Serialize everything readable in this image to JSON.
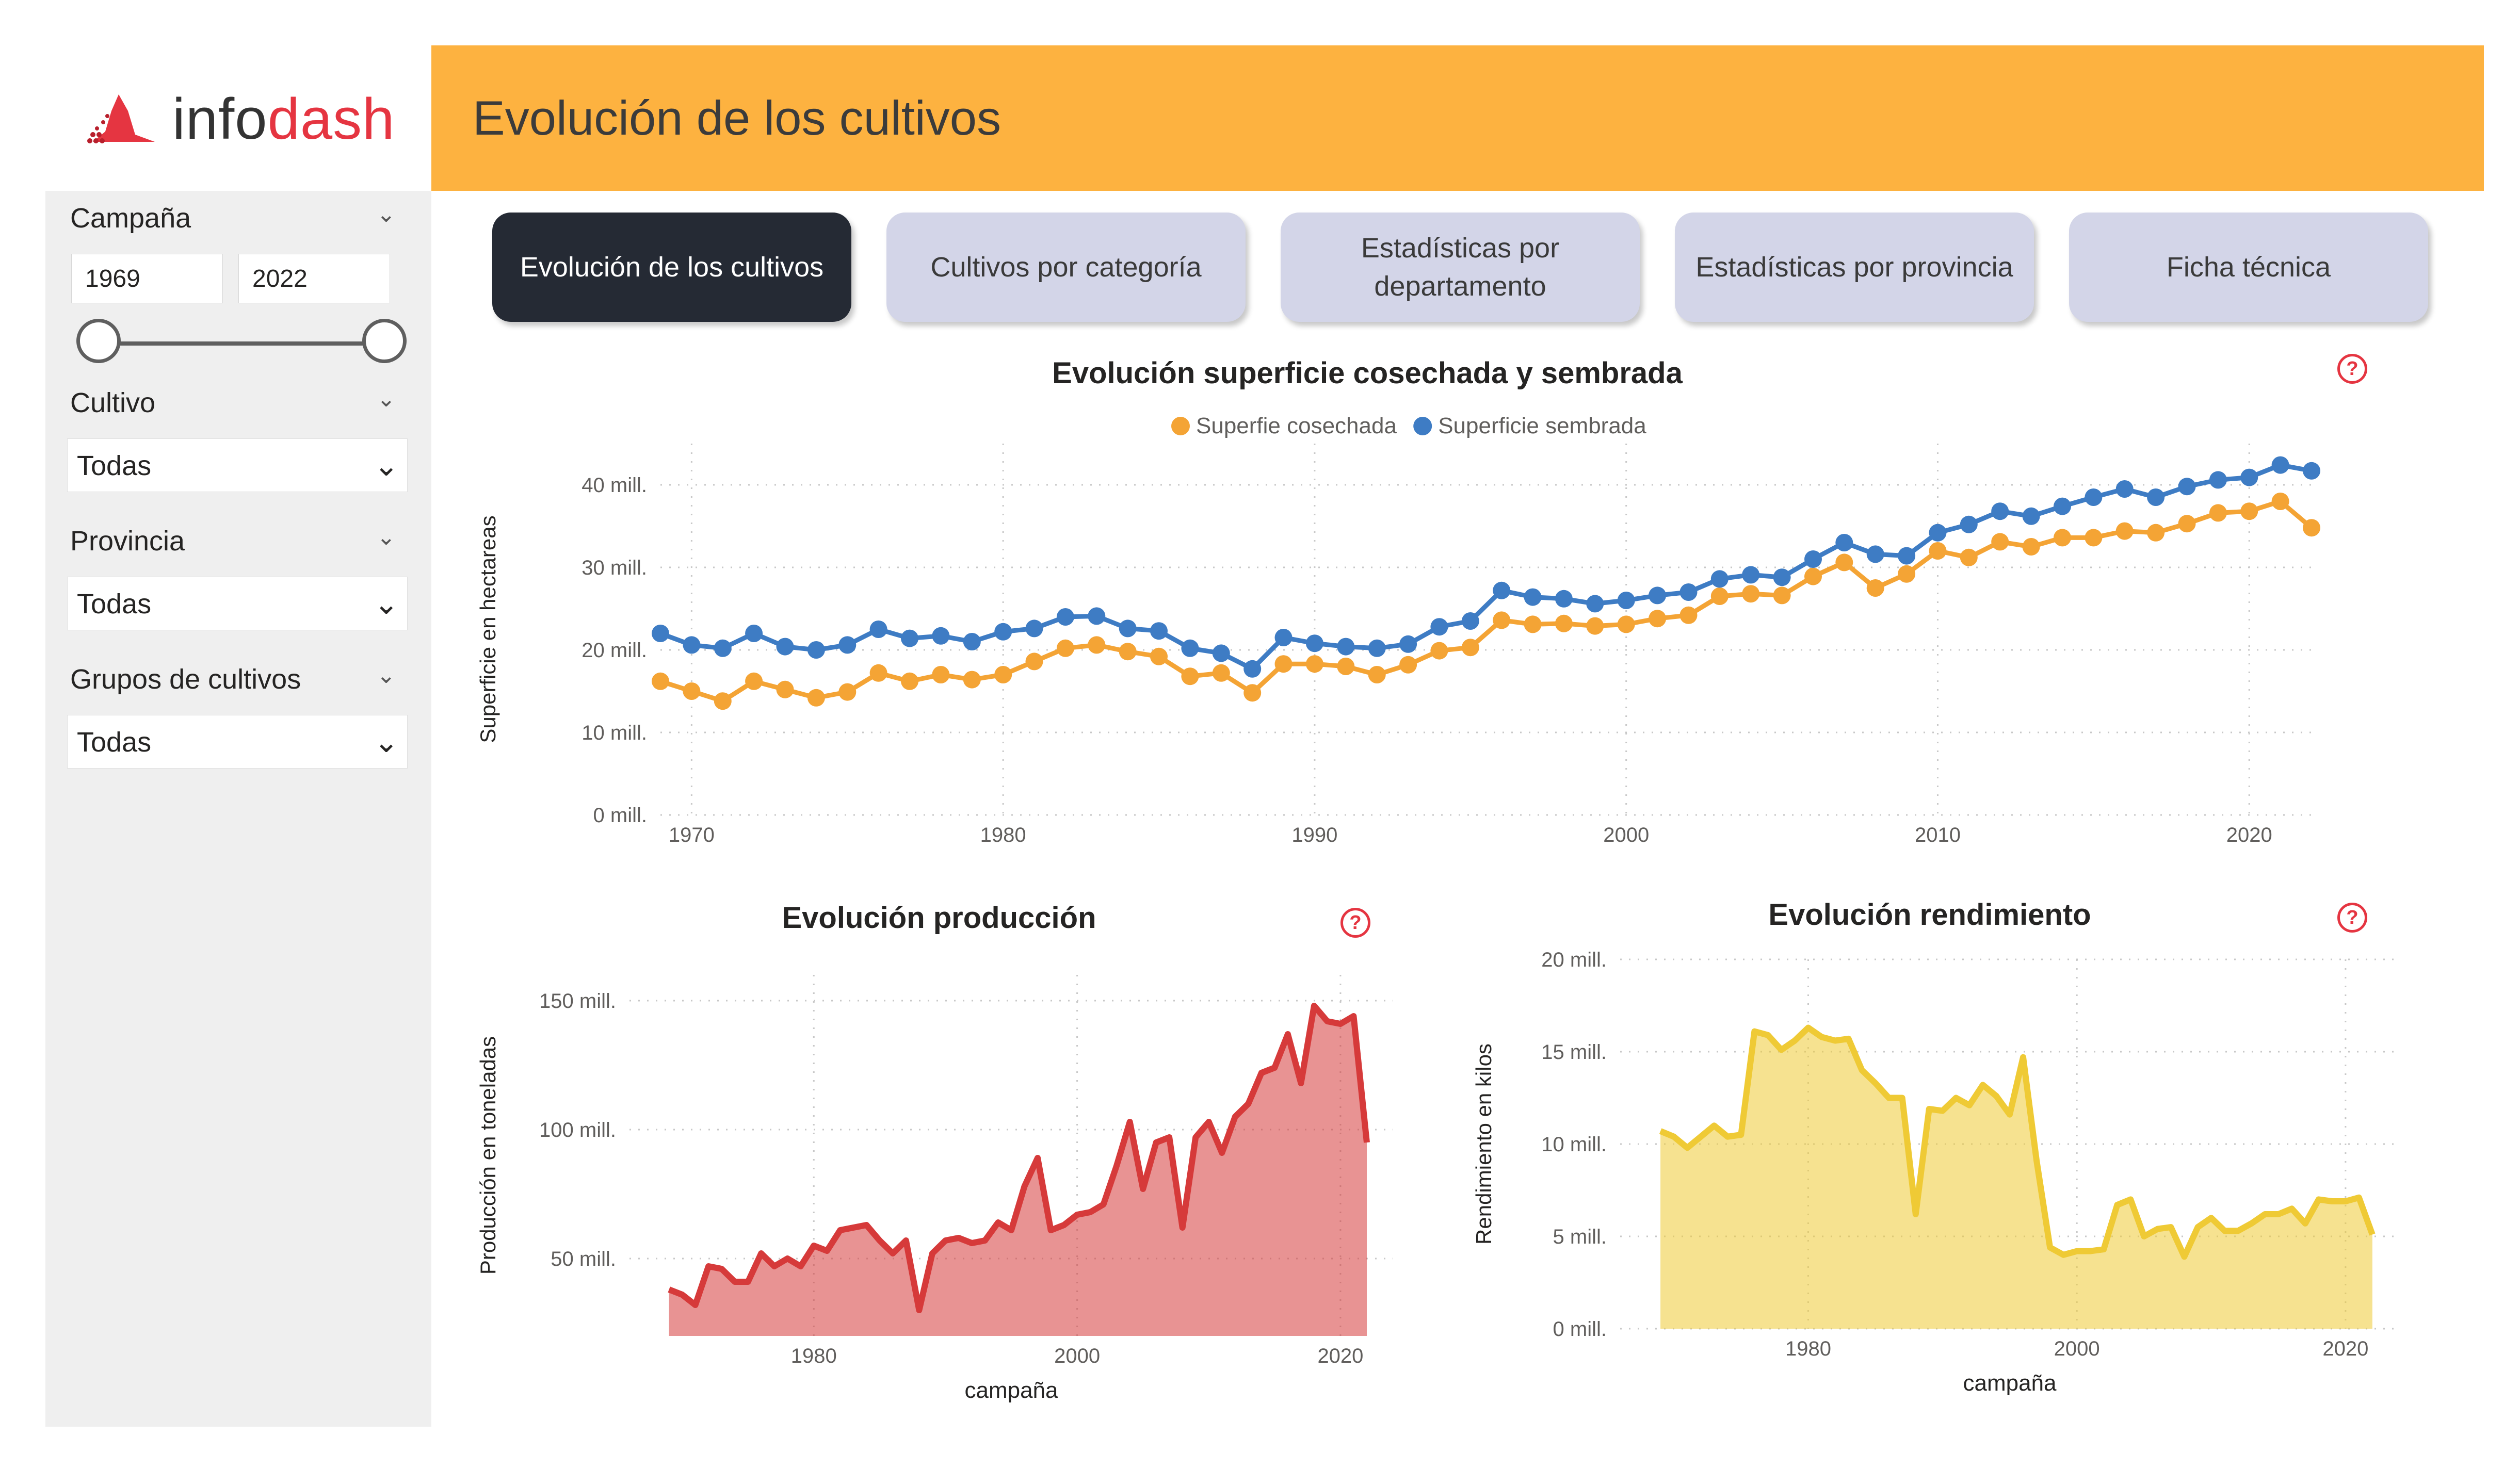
{
  "logo": {
    "text_a": "info",
    "text_b": "dash"
  },
  "header": {
    "title": "Evolución de los cultivos"
  },
  "sidebar": {
    "campana": {
      "label": "Campaña",
      "from": "1969",
      "to": "2022"
    },
    "cultivo": {
      "label": "Cultivo",
      "value": "Todas"
    },
    "provincia": {
      "label": "Provincia",
      "value": "Todas"
    },
    "grupos": {
      "label": "Grupos de cultivos",
      "value": "Todas"
    }
  },
  "tabs": [
    {
      "label": "Evolución de los cultivos",
      "active": true
    },
    {
      "label": "Cultivos por categoría",
      "active": false
    },
    {
      "label": "Estadísticas por departamento",
      "active": false
    },
    {
      "label": "Estadísticas por provincia",
      "active": false
    },
    {
      "label": "Ficha técnica",
      "active": false
    }
  ],
  "help_glyph": "?",
  "colors": {
    "accent": "#fdb240",
    "brand_red": "#e53541",
    "orange": "#f4a435",
    "blue": "#3e7cc4",
    "red": "#d63a3a",
    "yellow": "#efca35"
  },
  "chart_data": [
    {
      "type": "line",
      "title": "Evolución superficie cosechada y sembrada",
      "ylabel": "Superficie en hectareas",
      "xlabel": "",
      "legend": "top-center",
      "grid": true,
      "ylim": [
        0,
        45
      ],
      "xlim": [
        1969,
        2022
      ],
      "x_ticks": [
        1970,
        1980,
        1990,
        2000,
        2010,
        2020
      ],
      "y_ticks": [
        {
          "v": 0,
          "label": "0 mill."
        },
        {
          "v": 10,
          "label": "10 mill."
        },
        {
          "v": 20,
          "label": "20 mill."
        },
        {
          "v": 30,
          "label": "30 mill."
        },
        {
          "v": 40,
          "label": "40 mill."
        }
      ],
      "x": [
        1969,
        1970,
        1971,
        1972,
        1973,
        1974,
        1975,
        1976,
        1977,
        1978,
        1979,
        1980,
        1981,
        1982,
        1983,
        1984,
        1985,
        1986,
        1987,
        1988,
        1989,
        1990,
        1991,
        1992,
        1993,
        1994,
        1995,
        1996,
        1997,
        1998,
        1999,
        2000,
        2001,
        2002,
        2003,
        2004,
        2005,
        2006,
        2007,
        2008,
        2009,
        2010,
        2011,
        2012,
        2013,
        2014,
        2015,
        2016,
        2017,
        2018,
        2019,
        2020,
        2021,
        2022
      ],
      "series": [
        {
          "name": "Superfie cosechada",
          "color": "#f4a435",
          "values": [
            16.2,
            15,
            13.8,
            16.2,
            15.2,
            14.2,
            14.9,
            17.2,
            16.2,
            17,
            16.4,
            17,
            18.6,
            20.2,
            20.6,
            19.8,
            19.2,
            16.8,
            17.2,
            14.8,
            18.3,
            18.3,
            18,
            17,
            18.2,
            19.9,
            20.3,
            23.6,
            23.1,
            23.2,
            22.9,
            23.1,
            23.8,
            24.2,
            26.5,
            26.8,
            26.6,
            28.9,
            30.6,
            27.5,
            29.2,
            32,
            31.2,
            33.1,
            32.5,
            33.6,
            33.6,
            34.4,
            34.2,
            35.3,
            36.6,
            36.8,
            38,
            34.8
          ]
        },
        {
          "name": "Superficie sembrada",
          "color": "#3e7cc4",
          "values": [
            22,
            20.6,
            20.2,
            22,
            20.4,
            20,
            20.6,
            22.5,
            21.4,
            21.7,
            21,
            22.2,
            22.6,
            24,
            24.1,
            22.6,
            22.3,
            20.2,
            19.6,
            17.7,
            21.5,
            20.8,
            20.4,
            20.2,
            20.7,
            22.8,
            23.5,
            27.2,
            26.4,
            26.2,
            25.6,
            26,
            26.6,
            27,
            28.6,
            29.1,
            28.8,
            31,
            33,
            31.6,
            31.4,
            34.2,
            35.2,
            36.8,
            36.2,
            37.4,
            38.5,
            39.5,
            38.5,
            39.8,
            40.6,
            40.9,
            42.4,
            41.7
          ]
        }
      ]
    },
    {
      "type": "area",
      "title": "Evolución producción",
      "ylabel": "Producción en toneladas",
      "xlabel": "campaña",
      "grid": true,
      "ylim": [
        20,
        160
      ],
      "xlim": [
        1966,
        2024
      ],
      "x_ticks": [
        1980,
        2000,
        2020
      ],
      "y_ticks": [
        {
          "v": 50,
          "label": "50 mill."
        },
        {
          "v": 100,
          "label": "100 mill."
        },
        {
          "v": 150,
          "label": "150 mill."
        }
      ],
      "x": [
        1969,
        1970,
        1971,
        1972,
        1973,
        1974,
        1975,
        1976,
        1977,
        1978,
        1979,
        1980,
        1981,
        1982,
        1983,
        1984,
        1985,
        1986,
        1987,
        1988,
        1989,
        1990,
        1991,
        1992,
        1993,
        1994,
        1995,
        1996,
        1997,
        1998,
        1999,
        2000,
        2001,
        2002,
        2003,
        2004,
        2005,
        2006,
        2007,
        2008,
        2009,
        2010,
        2011,
        2012,
        2013,
        2014,
        2015,
        2016,
        2017,
        2018,
        2019,
        2020,
        2021,
        2022
      ],
      "series": [
        {
          "name": "Producción",
          "color": "#d63a3a",
          "values": [
            38,
            36,
            32,
            47,
            46,
            41,
            41,
            52,
            47,
            50,
            47,
            55,
            53,
            61,
            62,
            63,
            57,
            52,
            57,
            30,
            52,
            57,
            58,
            56,
            57,
            64,
            61,
            78,
            89,
            61,
            63,
            67,
            68,
            71,
            86,
            103,
            77,
            95,
            97,
            62,
            97,
            103,
            91,
            105,
            110,
            122,
            124,
            137,
            118,
            148,
            142,
            141,
            144,
            95
          ]
        }
      ]
    },
    {
      "type": "area",
      "title": "Evolución rendimiento",
      "ylabel": "Rendimiento en kilos",
      "xlabel": "campaña",
      "grid": true,
      "ylim": [
        0,
        20
      ],
      "xlim": [
        1966,
        2024
      ],
      "x_ticks": [
        1980,
        2000,
        2020
      ],
      "y_ticks": [
        {
          "v": 0,
          "label": "0 mill."
        },
        {
          "v": 5,
          "label": "5 mill."
        },
        {
          "v": 10,
          "label": "10 mill."
        },
        {
          "v": 15,
          "label": "15 mill."
        },
        {
          "v": 20,
          "label": "20 mill."
        }
      ],
      "x": [
        1969,
        1970,
        1971,
        1972,
        1973,
        1974,
        1975,
        1976,
        1977,
        1978,
        1979,
        1980,
        1981,
        1982,
        1983,
        1984,
        1985,
        1986,
        1987,
        1988,
        1989,
        1990,
        1991,
        1992,
        1993,
        1994,
        1995,
        1996,
        1997,
        1998,
        1999,
        2000,
        2001,
        2002,
        2003,
        2004,
        2005,
        2006,
        2007,
        2008,
        2009,
        2010,
        2011,
        2012,
        2013,
        2014,
        2015,
        2016,
        2017,
        2018,
        2019,
        2020,
        2021,
        2022
      ],
      "series": [
        {
          "name": "Rendimiento",
          "color": "#efca35",
          "values": [
            10.7,
            10.4,
            9.8,
            10.4,
            11,
            10.4,
            10.5,
            16.1,
            15.9,
            15.1,
            15.6,
            16.3,
            15.8,
            15.6,
            15.7,
            14,
            13.3,
            12.5,
            12.5,
            6.2,
            11.9,
            11.8,
            12.5,
            12.1,
            13.2,
            12.6,
            11.6,
            14.7,
            9.1,
            4.4,
            4,
            4.2,
            4.2,
            4.3,
            6.7,
            7,
            5,
            5.4,
            5.5,
            3.9,
            5.5,
            6,
            5.3,
            5.3,
            5.7,
            6.2,
            6.2,
            6.5,
            5.7,
            7,
            6.9,
            6.9,
            7.1,
            5.1
          ]
        }
      ]
    }
  ]
}
